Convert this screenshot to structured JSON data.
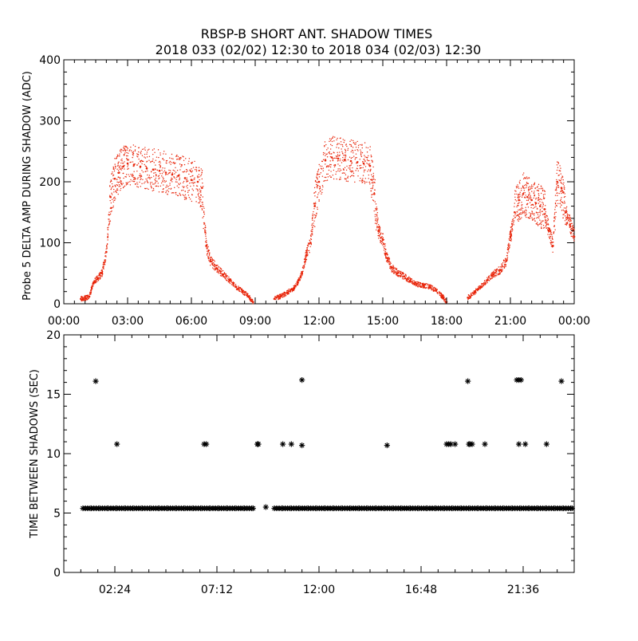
{
  "title_line1": "RBSP-B SHORT ANT. SHADOW TIMES",
  "title_line2": "2018 033 (02/02) 12:30 to 2018 034 (02/03) 12:30",
  "colors": {
    "points": "#e8250a",
    "markers": "#000000",
    "frame": "#000000"
  },
  "chart_data": [
    {
      "type": "scatter",
      "ylabel": "Probe 5 DELTA AMP DURING SHADOW (ADC)",
      "xlabel": "",
      "xlim": [
        0,
        24
      ],
      "ylim": [
        0,
        400
      ],
      "xticks": [
        0,
        3,
        6,
        9,
        12,
        15,
        18,
        21,
        24
      ],
      "xtick_labels": [
        "00:00",
        "03:00",
        "06:00",
        "09:00",
        "12:00",
        "15:00",
        "18:00",
        "21:00",
        "00:00"
      ],
      "yticks": [
        0,
        100,
        200,
        300,
        400
      ],
      "ytick_labels": [
        "0",
        "100",
        "200",
        "300",
        "400"
      ],
      "series": [
        {
          "name": "delta amp",
          "x": [
            0.8,
            1.0,
            1.2,
            1.4,
            1.6,
            1.8,
            2.0,
            2.2,
            2.4,
            2.6,
            2.8,
            3.0,
            3.3,
            3.6,
            3.9,
            4.2,
            4.5,
            4.8,
            5.1,
            5.4,
            5.7,
            6.0,
            6.3,
            6.5,
            6.7,
            6.9,
            7.2,
            7.5,
            7.8,
            8.1,
            8.4,
            8.7,
            8.9,
            9.9,
            10.2,
            10.5,
            10.8,
            11.0,
            11.2,
            11.4,
            11.6,
            11.8,
            12.0,
            12.3,
            12.6,
            12.9,
            13.2,
            13.5,
            13.8,
            14.1,
            14.4,
            14.6,
            14.8,
            15.0,
            15.2,
            15.4,
            15.7,
            16.0,
            16.3,
            16.6,
            16.9,
            17.2,
            17.5,
            17.8,
            18.0,
            19.0,
            19.3,
            19.6,
            19.9,
            20.2,
            20.5,
            20.8,
            21.0,
            21.2,
            21.4,
            21.6,
            21.8,
            22.0,
            22.2,
            22.4,
            22.6,
            22.8,
            23.0,
            23.2,
            23.4,
            23.6,
            23.8,
            24.0
          ],
          "y": [
            8,
            9,
            12,
            35,
            42,
            50,
            85,
            175,
            205,
            215,
            225,
            230,
            228,
            225,
            222,
            220,
            218,
            215,
            212,
            210,
            206,
            203,
            200,
            190,
            95,
            70,
            58,
            48,
            38,
            28,
            20,
            12,
            3,
            8,
            12,
            18,
            25,
            35,
            50,
            80,
            100,
            160,
            200,
            235,
            240,
            238,
            236,
            234,
            232,
            230,
            226,
            180,
            120,
            105,
            75,
            60,
            50,
            45,
            38,
            32,
            30,
            28,
            22,
            12,
            3,
            10,
            18,
            28,
            38,
            48,
            55,
            70,
            110,
            150,
            170,
            180,
            175,
            170,
            165,
            160,
            155,
            120,
            95,
            200,
            190,
            150,
            130,
            110
          ]
        }
      ]
    },
    {
      "type": "scatter",
      "ylabel": "TIME BETWEEN SHADOWS (SEC)",
      "xlabel": "",
      "xlim": [
        0,
        24
      ],
      "ylim": [
        0,
        20
      ],
      "xticks": [
        2.4,
        7.2,
        12.0,
        16.8,
        21.6
      ],
      "xtick_labels": [
        "02:24",
        "07:12",
        "12:00",
        "16:48",
        "21:36"
      ],
      "yticks": [
        0,
        5,
        10,
        15,
        20
      ],
      "ytick_labels": [
        "0",
        "5",
        "10",
        "15",
        "20"
      ],
      "series": [
        {
          "name": "baseline",
          "x": [
            0.9,
            1.3,
            1.7,
            2.1,
            2.5,
            2.9,
            3.3,
            3.7,
            4.1,
            4.5,
            4.9,
            5.3,
            5.7,
            6.1,
            6.5,
            6.9,
            7.3,
            7.7,
            8.1,
            8.5,
            8.9,
            9.9,
            10.3,
            10.7,
            11.1,
            11.5,
            11.9,
            12.3,
            12.7,
            13.1,
            13.5,
            13.9,
            14.3,
            14.7,
            15.1,
            15.5,
            15.9,
            16.3,
            16.7,
            17.1,
            17.5,
            17.9,
            18.3,
            18.7,
            19.1,
            19.5,
            19.9,
            20.3,
            20.7,
            21.1,
            21.5,
            21.9,
            22.3,
            22.7,
            23.1,
            23.5,
            23.9
          ],
          "y": [
            5.4,
            5.4,
            5.4,
            5.4,
            5.4,
            5.4,
            5.4,
            5.4,
            5.4,
            5.4,
            5.4,
            5.4,
            5.4,
            5.4,
            5.4,
            5.4,
            5.4,
            5.4,
            5.4,
            5.4,
            5.4,
            5.4,
            5.4,
            5.4,
            5.4,
            5.4,
            5.4,
            5.4,
            5.4,
            5.4,
            5.4,
            5.4,
            5.4,
            5.4,
            5.4,
            5.4,
            5.4,
            5.4,
            5.4,
            5.4,
            5.4,
            5.4,
            5.4,
            5.4,
            5.4,
            5.4,
            5.4,
            5.4,
            5.4,
            5.4,
            5.4,
            5.4,
            5.4,
            5.4,
            5.4,
            5.4,
            5.4
          ]
        },
        {
          "name": "outliers",
          "x": [
            1.5,
            2.5,
            6.6,
            6.7,
            9.1,
            9.15,
            9.5,
            10.3,
            10.7,
            11.2,
            11.2,
            15.2,
            18.0,
            18.1,
            18.2,
            18.4,
            19.0,
            19.05,
            19.1,
            19.2,
            19.8,
            21.3,
            21.4,
            21.5,
            21.4,
            21.7,
            22.7,
            23.4
          ],
          "y": [
            16.1,
            10.8,
            10.8,
            10.8,
            10.8,
            10.8,
            5.5,
            10.8,
            10.8,
            10.7,
            16.2,
            10.7,
            10.8,
            10.8,
            10.8,
            10.8,
            16.1,
            10.8,
            10.8,
            10.8,
            10.8,
            16.2,
            16.2,
            16.2,
            10.8,
            10.8,
            10.8,
            16.1
          ]
        }
      ]
    }
  ]
}
